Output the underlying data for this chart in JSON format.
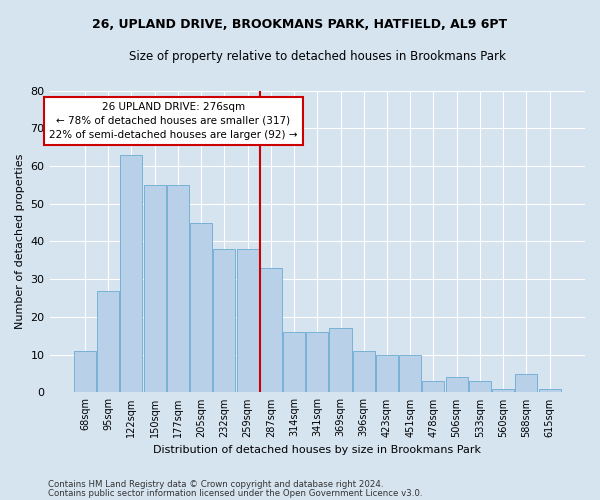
{
  "title": "26, UPLAND DRIVE, BROOKMANS PARK, HATFIELD, AL9 6PT",
  "subtitle": "Size of property relative to detached houses in Brookmans Park",
  "xlabel": "Distribution of detached houses by size in Brookmans Park",
  "ylabel": "Number of detached properties",
  "bins": [
    "68sqm",
    "95sqm",
    "122sqm",
    "150sqm",
    "177sqm",
    "205sqm",
    "232sqm",
    "259sqm",
    "287sqm",
    "314sqm",
    "341sqm",
    "369sqm",
    "396sqm",
    "423sqm",
    "451sqm",
    "478sqm",
    "506sqm",
    "533sqm",
    "560sqm",
    "588sqm",
    "615sqm"
  ],
  "bar_heights": [
    11,
    27,
    63,
    55,
    55,
    45,
    38,
    38,
    33,
    16,
    16,
    17,
    11,
    10,
    10,
    3,
    4,
    3,
    1,
    5,
    1
  ],
  "bar_color": "#b8d0e8",
  "bar_edge_color": "#6aaad4",
  "vline_color": "#cc0000",
  "annotation_text": "26 UPLAND DRIVE: 276sqm\n← 78% of detached houses are smaller (317)\n22% of semi-detached houses are larger (92) →",
  "annotation_box_color": "#cc0000",
  "ylim": [
    0,
    80
  ],
  "yticks": [
    0,
    10,
    20,
    30,
    40,
    50,
    60,
    70,
    80
  ],
  "footer_line1": "Contains HM Land Registry data © Crown copyright and database right 2024.",
  "footer_line2": "Contains public sector information licensed under the Open Government Licence v3.0.",
  "fig_bg_color": "#d6e4f0",
  "plot_bg_color": "#d6e4f0"
}
